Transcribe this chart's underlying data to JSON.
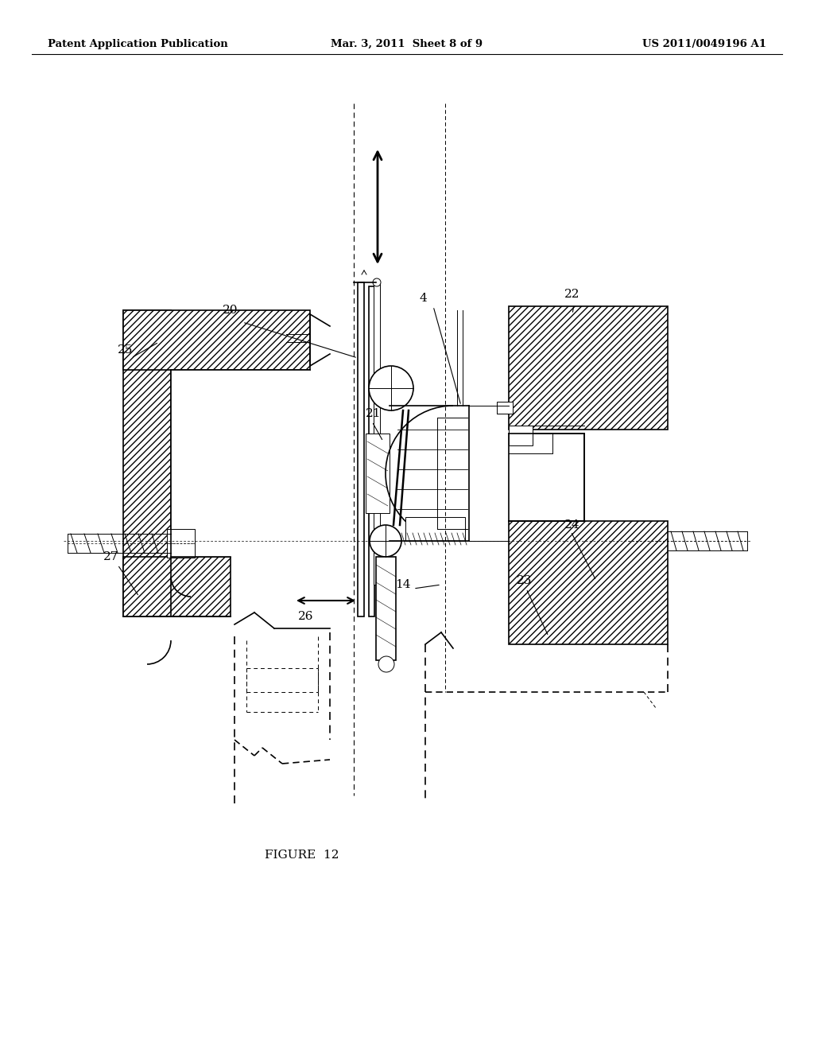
{
  "bg_color": "#ffffff",
  "header_left": "Patent Application Publication",
  "header_mid": "Mar. 3, 2011  Sheet 8 of 9",
  "header_right": "US 2011/0049196 A1",
  "figure_caption": "FIGURE  12",
  "line_color": "#000000",
  "hatch_color": "#000000"
}
